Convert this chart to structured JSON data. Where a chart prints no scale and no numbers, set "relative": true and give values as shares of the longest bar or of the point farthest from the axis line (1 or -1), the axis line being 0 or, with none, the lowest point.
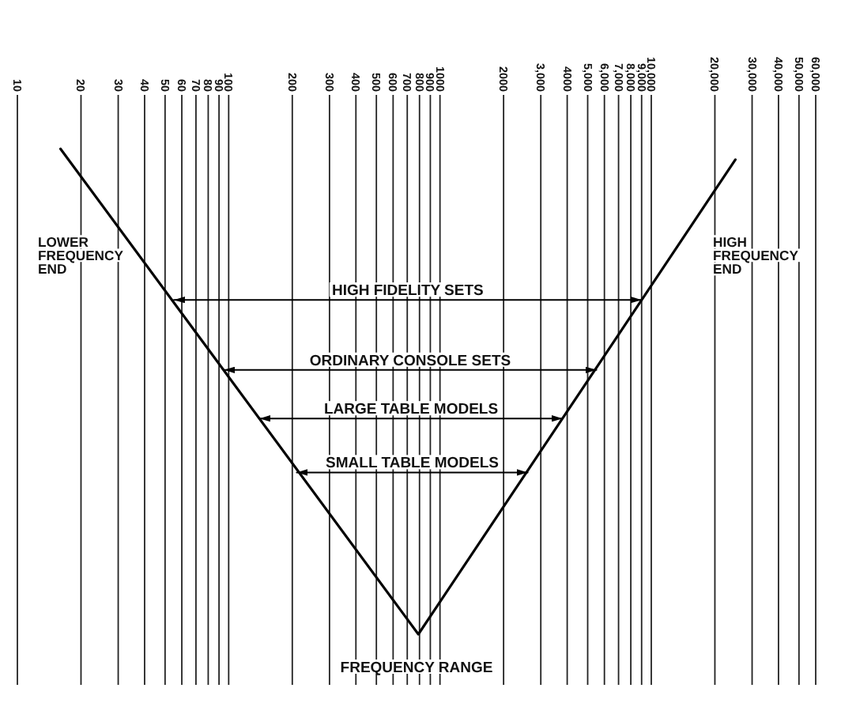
{
  "chart_data": {
    "type": "line",
    "xlabel": "FREQUENCY RANGE",
    "log": "x",
    "relative": true,
    "grid": "x",
    "xlim": [
      10,
      60000
    ],
    "xticks": [
      10,
      20,
      30,
      40,
      50,
      60,
      70,
      80,
      90,
      100,
      200,
      300,
      400,
      500,
      600,
      700,
      800,
      900,
      1000,
      2000,
      {
        "value": 3000,
        "label": "3,000"
      },
      4000,
      {
        "value": 5000,
        "label": "5,000"
      },
      {
        "value": 6000,
        "label": "6,000"
      },
      {
        "value": 7000,
        "label": "7,000"
      },
      {
        "value": 8000,
        "label": "8,000"
      },
      {
        "value": 9000,
        "label": "9,000"
      },
      {
        "value": 10000,
        "label": "10,000"
      },
      {
        "value": 20000,
        "label": "20,000"
      },
      {
        "value": 30000,
        "label": "30,000"
      },
      {
        "value": 40000,
        "label": "40,000"
      },
      {
        "value": 50000,
        "label": "50,000"
      },
      {
        "value": 60000,
        "label": "60,000"
      }
    ],
    "series": [
      {
        "x": [
          16,
          790,
          25000
        ],
        "values": [
          -0.1,
          -1,
          -0.12
        ],
        "color": "#000000"
      },
      {
        "name": "HIGH FIDELITY SETS",
        "x": [
          55,
          9000
        ],
        "values": [
          -0.38,
          -0.38
        ],
        "color": "#000000"
      },
      {
        "name": "ORDINARY CONSOLE SETS",
        "x": [
          95,
          5500
        ],
        "values": [
          -0.51,
          -0.51
        ],
        "color": "#000000"
      },
      {
        "name": "LARGE TABLE MODELS",
        "x": [
          140,
          3800
        ],
        "values": [
          -0.6,
          -0.6
        ],
        "color": "#000000"
      },
      {
        "name": "SMALL TABLE MODELS",
        "x": [
          210,
          2600
        ],
        "values": [
          -0.7,
          -0.7
        ],
        "color": "#000000"
      }
    ],
    "annotations": [
      "LOWER FREQUENCY END",
      "HIGH FREQUENCY END"
    ]
  }
}
